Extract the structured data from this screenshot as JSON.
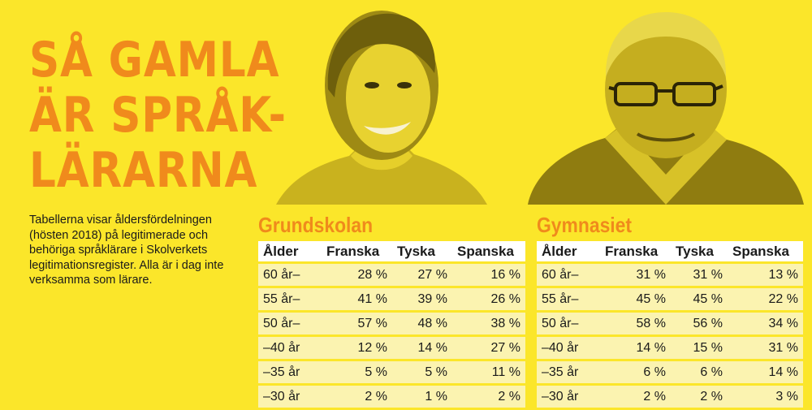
{
  "headline": [
    "SÅ GAMLA",
    "ÄR SPRÅK-",
    "LÄRARNA"
  ],
  "intro": "Tabellerna visar åldersfördelningen (hösten 2018) på legitimerade och behöriga språklärare i Skolverkets legitimationsregister. Alla är i dag inte verksamma som lärare.",
  "colors": {
    "background": "#fbe62a",
    "accent": "#f08a1c",
    "row": "#fbf3b0",
    "header_row": "#ffffff"
  },
  "photos": [
    "young-woman-portrait",
    "older-man-with-glasses-portrait"
  ],
  "tables": {
    "grundskolan": {
      "title": "Grundskolan",
      "headers": [
        "Ålder",
        "Franska",
        "Tyska",
        "Spanska"
      ],
      "rows": [
        [
          "60 år–",
          "28 %",
          "27 %",
          "16 %"
        ],
        [
          "55 år–",
          "41 %",
          "39 %",
          "26 %"
        ],
        [
          "50 år–",
          "57 %",
          "48 %",
          "38 %"
        ],
        [
          "–40 år",
          "12 %",
          "14 %",
          "27 %"
        ],
        [
          "–35 år",
          "5 %",
          "5 %",
          "11 %"
        ],
        [
          "–30 år",
          "2 %",
          "1 %",
          "2 %"
        ]
      ]
    },
    "gymnasiet": {
      "title": "Gymnasiet",
      "headers": [
        "Ålder",
        "Franska",
        "Tyska",
        "Spanska"
      ],
      "rows": [
        [
          "60 år–",
          "31 %",
          "31 %",
          "13 %"
        ],
        [
          "55 år–",
          "45 %",
          "45 %",
          "22 %"
        ],
        [
          "50 år–",
          "58 %",
          "56 %",
          "34 %"
        ],
        [
          "–40 år",
          "14 %",
          "15 %",
          "31 %"
        ],
        [
          "–35 år",
          "6 %",
          "6 %",
          "14 %"
        ],
        [
          "–30 år",
          "2 %",
          "2 %",
          "3 %"
        ]
      ]
    }
  }
}
